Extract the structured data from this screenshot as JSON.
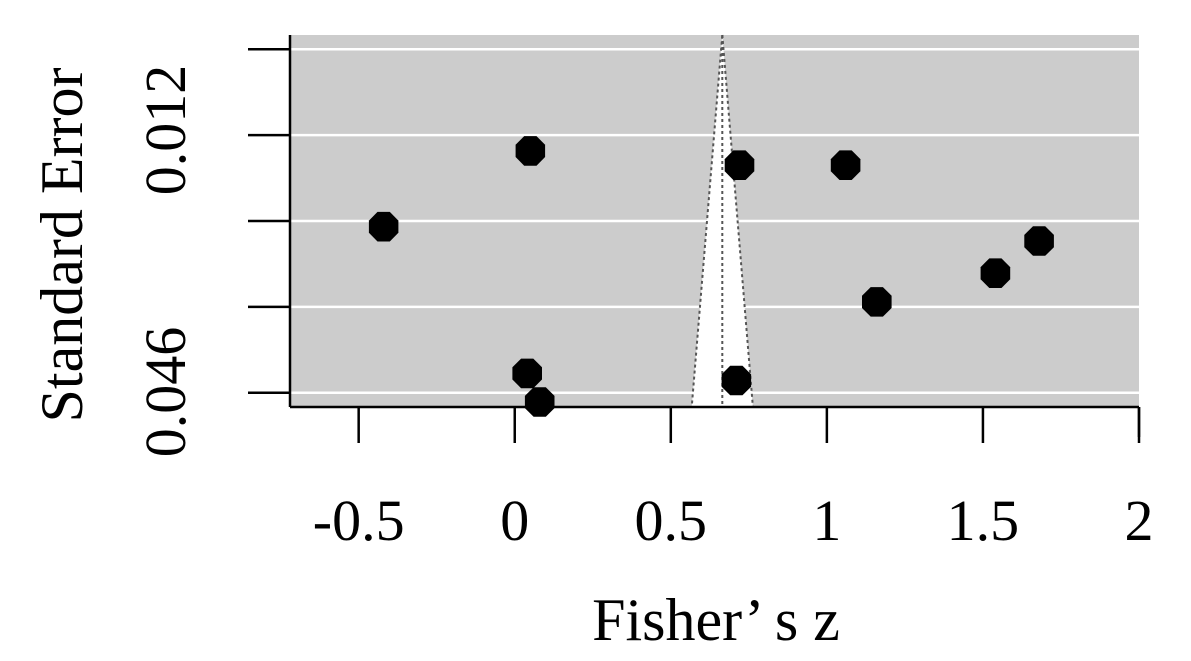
{
  "chart_data": {
    "type": "scatter",
    "plot_kind": "funnel",
    "title": "",
    "xlabel": "Fisher’ s z",
    "ylabel": "Standard Error",
    "x_ticks": [
      -0.5,
      0,
      0.5,
      1,
      1.5,
      2
    ],
    "x_tick_labels": [
      "-0.5",
      "0",
      "0.5",
      "1",
      "1.5",
      "2"
    ],
    "xlim": [
      -0.72,
      2.0
    ],
    "y_ticks": [
      0,
      0.012,
      0.024,
      0.036,
      0.048
    ],
    "y_tick_labels": [
      "0.012",
      "0.046"
    ],
    "y_tick_labeled_values": [
      0.012,
      0.046
    ],
    "ylim": [
      0.05,
      -0.002
    ],
    "y_reversed": true,
    "grid": true,
    "background": "#cccccc",
    "point_color": "#000000",
    "funnel_center": 0.665,
    "funnel_ci_multiplier": 1.96,
    "points": [
      {
        "x": 0.05,
        "y": 0.0142
      },
      {
        "x": 0.72,
        "y": 0.0162
      },
      {
        "x": 1.06,
        "y": 0.0162
      },
      {
        "x": -0.42,
        "y": 0.0248
      },
      {
        "x": 1.68,
        "y": 0.0268
      },
      {
        "x": 1.54,
        "y": 0.0313
      },
      {
        "x": 1.16,
        "y": 0.0353
      },
      {
        "x": 0.04,
        "y": 0.0453
      },
      {
        "x": 0.71,
        "y": 0.0463
      },
      {
        "x": 0.08,
        "y": 0.0493
      }
    ]
  }
}
